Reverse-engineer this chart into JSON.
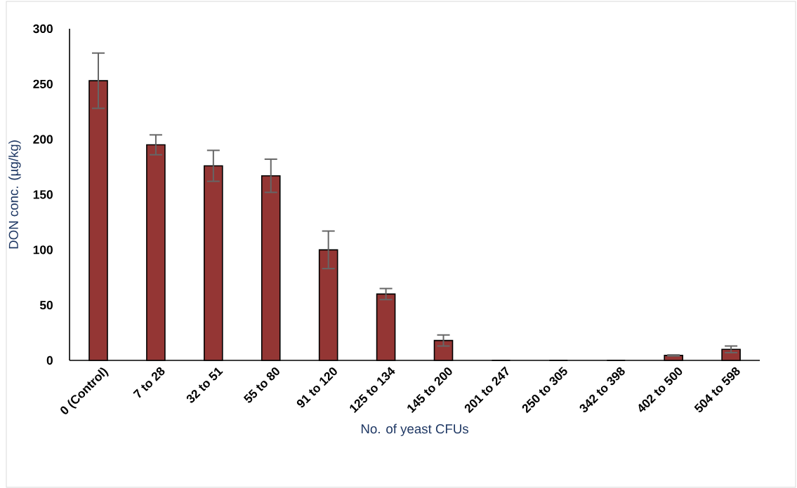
{
  "chart_data": {
    "type": "bar",
    "xlabel": "No. of yeast CFUs",
    "ylabel": "DON conc. (µg/kg)",
    "categories": [
      "0 (Control)",
      "7 to 28",
      "32 to 51",
      "55 to 80",
      "91 to 120",
      "125 to 134",
      "145 to 200",
      "201 to 247",
      "250 to 305",
      "342 to 398",
      "402 to 500",
      "504 to 598"
    ],
    "values": [
      253,
      195,
      176,
      167,
      100,
      60,
      18,
      0,
      0,
      0,
      4.5,
      10
    ],
    "errors": [
      25,
      9,
      14,
      15,
      17,
      5,
      5,
      null,
      null,
      null,
      0.5,
      3
    ],
    "color": "#943634",
    "ylim": [
      0,
      300
    ],
    "yticks": [
      0,
      50,
      100,
      150,
      200,
      250,
      300
    ]
  }
}
